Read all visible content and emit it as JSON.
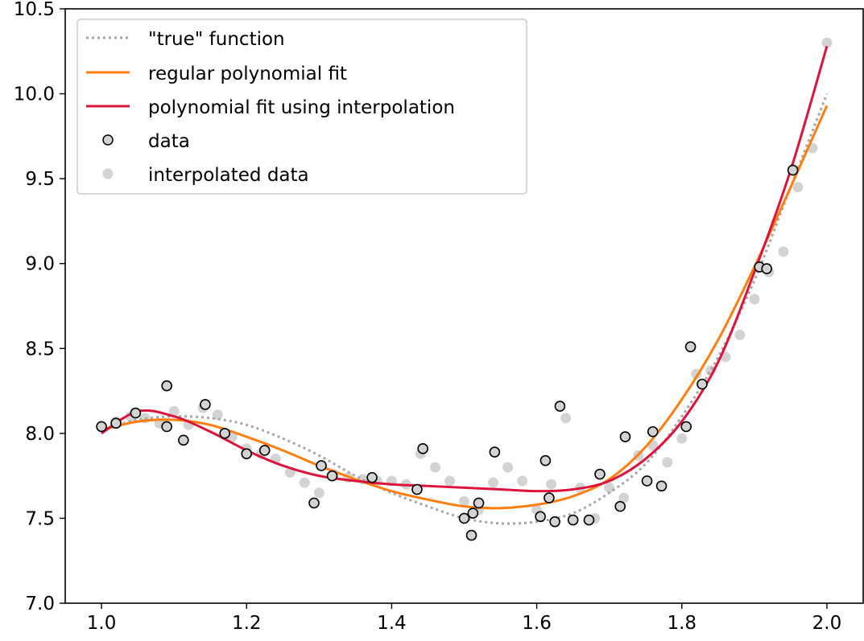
{
  "chart_data": {
    "type": "scatter",
    "title": "",
    "xlabel": "",
    "ylabel": "",
    "xlim": [
      0.95,
      2.05
    ],
    "ylim": [
      7.0,
      10.5
    ],
    "x_ticks": [
      "1.0",
      "1.2",
      "1.4",
      "1.6",
      "1.8",
      "2.0"
    ],
    "y_ticks": [
      "7.0",
      "7.5",
      "8.0",
      "8.5",
      "9.0",
      "9.5",
      "10.0",
      "10.5"
    ],
    "grid": false,
    "legend": {
      "placement": "top-left",
      "entries": [
        "\"true\" function",
        "regular polynomial fit",
        "polynomial fit using interpolation",
        "data",
        "interpolated data"
      ]
    },
    "colors": {
      "true_function": "#a6a6a6",
      "regular_fit": "#ff7f0e",
      "interp_fit": "#dc143c",
      "data_face": "#d3d3d3",
      "data_edge": "#000000",
      "interp_data": "#d3d3d3"
    },
    "series": [
      {
        "name": "\"true\" function",
        "kind": "line",
        "style": "dotted",
        "x": [
          1.0,
          1.05,
          1.1,
          1.15,
          1.2,
          1.25,
          1.3,
          1.35,
          1.4,
          1.45,
          1.5,
          1.55,
          1.6,
          1.65,
          1.7,
          1.75,
          1.8,
          1.85,
          1.9,
          1.95,
          2.0
        ],
        "y": [
          8.02,
          8.08,
          8.1,
          8.09,
          8.05,
          7.97,
          7.87,
          7.75,
          7.65,
          7.57,
          7.5,
          7.47,
          7.48,
          7.53,
          7.65,
          7.82,
          8.1,
          8.45,
          8.9,
          9.45,
          10.0
        ]
      },
      {
        "name": "regular polynomial fit",
        "kind": "line",
        "style": "solid",
        "x": [
          1.0,
          1.05,
          1.1,
          1.15,
          1.2,
          1.25,
          1.3,
          1.35,
          1.4,
          1.45,
          1.5,
          1.55,
          1.6,
          1.65,
          1.7,
          1.75,
          1.8,
          1.85,
          1.9,
          1.95,
          2.0
        ],
        "y": [
          8.02,
          8.07,
          8.08,
          8.05,
          7.98,
          7.9,
          7.81,
          7.73,
          7.66,
          7.61,
          7.57,
          7.56,
          7.58,
          7.63,
          7.73,
          7.92,
          8.2,
          8.55,
          8.98,
          9.45,
          9.93
        ]
      },
      {
        "name": "polynomial fit using interpolation",
        "kind": "line",
        "style": "solid",
        "x": [
          1.0,
          1.05,
          1.1,
          1.15,
          1.2,
          1.25,
          1.3,
          1.35,
          1.4,
          1.45,
          1.5,
          1.55,
          1.6,
          1.65,
          1.7,
          1.75,
          1.8,
          1.85,
          1.9,
          1.95,
          2.0
        ],
        "y": [
          8.0,
          8.13,
          8.1,
          8.01,
          7.9,
          7.81,
          7.75,
          7.72,
          7.7,
          7.69,
          7.68,
          7.67,
          7.66,
          7.67,
          7.72,
          7.85,
          8.07,
          8.42,
          8.95,
          9.55,
          10.28
        ]
      },
      {
        "name": "interpolated data",
        "kind": "points",
        "x": [
          1.0,
          1.02,
          1.04,
          1.06,
          1.08,
          1.1,
          1.12,
          1.14,
          1.16,
          1.18,
          1.2,
          1.22,
          1.24,
          1.26,
          1.28,
          1.3,
          1.32,
          1.34,
          1.36,
          1.38,
          1.4,
          1.42,
          1.44,
          1.46,
          1.48,
          1.5,
          1.52,
          1.54,
          1.56,
          1.58,
          1.6,
          1.62,
          1.64,
          1.66,
          1.68,
          1.7,
          1.72,
          1.74,
          1.76,
          1.78,
          1.8,
          1.82,
          1.84,
          1.86,
          1.88,
          1.9,
          1.92,
          1.94,
          1.96,
          1.98,
          2.0
        ],
        "y": [
          8.04,
          8.07,
          8.1,
          8.09,
          8.06,
          8.13,
          8.05,
          8.15,
          8.11,
          7.98,
          7.91,
          7.88,
          7.85,
          7.77,
          7.71,
          7.65,
          7.76,
          7.74,
          7.73,
          7.72,
          7.72,
          7.7,
          7.88,
          7.8,
          7.72,
          7.6,
          7.55,
          7.71,
          7.8,
          7.72,
          7.55,
          7.7,
          8.09,
          7.68,
          7.5,
          7.68,
          7.62,
          7.87,
          7.93,
          7.83,
          7.97,
          8.35,
          8.37,
          8.45,
          8.58,
          8.79,
          8.95,
          9.07,
          9.45,
          9.68,
          10.3
        ]
      },
      {
        "name": "data",
        "kind": "points",
        "x": [
          1.0,
          1.02,
          1.047,
          1.09,
          1.09,
          1.113,
          1.143,
          1.17,
          1.2,
          1.225,
          1.293,
          1.303,
          1.318,
          1.373,
          1.435,
          1.443,
          1.5,
          1.51,
          1.512,
          1.52,
          1.542,
          1.605,
          1.612,
          1.617,
          1.625,
          1.632,
          1.65,
          1.672,
          1.687,
          1.715,
          1.722,
          1.752,
          1.76,
          1.772,
          1.806,
          1.812,
          1.828,
          1.907,
          1.917,
          1.953
        ],
        "y": [
          8.04,
          8.06,
          8.12,
          8.28,
          8.04,
          7.96,
          8.17,
          8.0,
          7.88,
          7.9,
          7.59,
          7.81,
          7.75,
          7.74,
          7.67,
          7.91,
          7.5,
          7.4,
          7.53,
          7.59,
          7.89,
          7.51,
          7.84,
          7.62,
          7.48,
          8.16,
          7.49,
          7.49,
          7.76,
          7.57,
          7.98,
          7.72,
          8.01,
          7.69,
          8.04,
          8.51,
          8.29,
          8.98,
          8.97,
          9.55
        ]
      }
    ]
  }
}
